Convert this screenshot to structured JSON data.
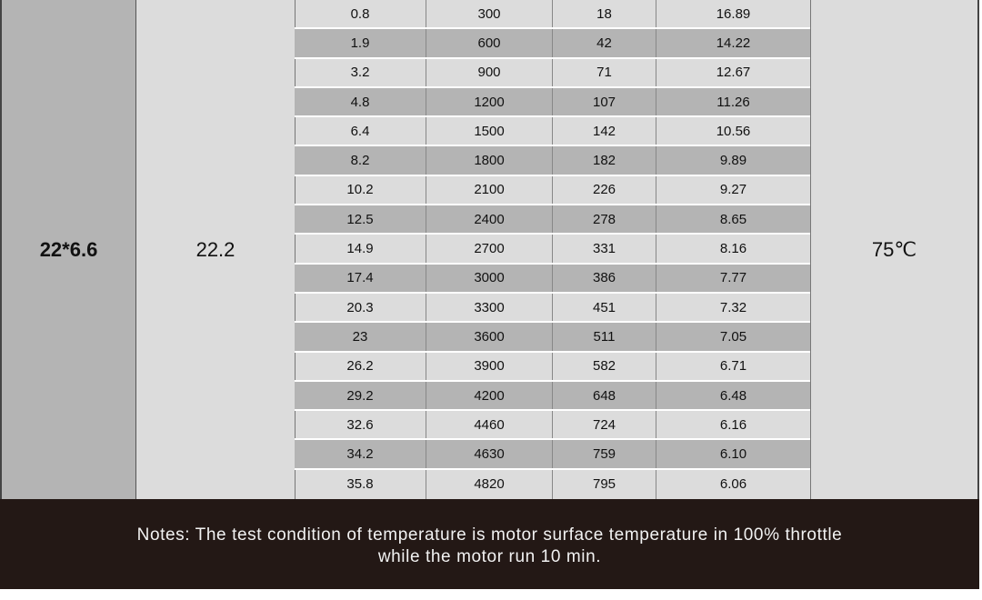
{
  "prop": "22*6.6",
  "voltage": "22.2",
  "temperature": "75℃",
  "rows": [
    [
      "0.8",
      "300",
      "18",
      "16.89"
    ],
    [
      "1.9",
      "600",
      "42",
      "14.22"
    ],
    [
      "3.2",
      "900",
      "71",
      "12.67"
    ],
    [
      "4.8",
      "1200",
      "107",
      "11.26"
    ],
    [
      "6.4",
      "1500",
      "142",
      "10.56"
    ],
    [
      "8.2",
      "1800",
      "182",
      "9.89"
    ],
    [
      "10.2",
      "2100",
      "226",
      "9.27"
    ],
    [
      "12.5",
      "2400",
      "278",
      "8.65"
    ],
    [
      "14.9",
      "2700",
      "331",
      "8.16"
    ],
    [
      "17.4",
      "3000",
      "386",
      "7.77"
    ],
    [
      "20.3",
      "3300",
      "451",
      "7.32"
    ],
    [
      "23",
      "3600",
      "511",
      "7.05"
    ],
    [
      "26.2",
      "3900",
      "582",
      "6.71"
    ],
    [
      "29.2",
      "4200",
      "648",
      "6.48"
    ],
    [
      "32.6",
      "4460",
      "724",
      "6.16"
    ],
    [
      "34.2",
      "4630",
      "759",
      "6.10"
    ],
    [
      "35.8",
      "4820",
      "795",
      "6.06"
    ]
  ],
  "notes": {
    "line1": "Notes: The test condition of temperature is motor surface temperature in 100% throttle",
    "line2": "while the motor run 10 min."
  }
}
